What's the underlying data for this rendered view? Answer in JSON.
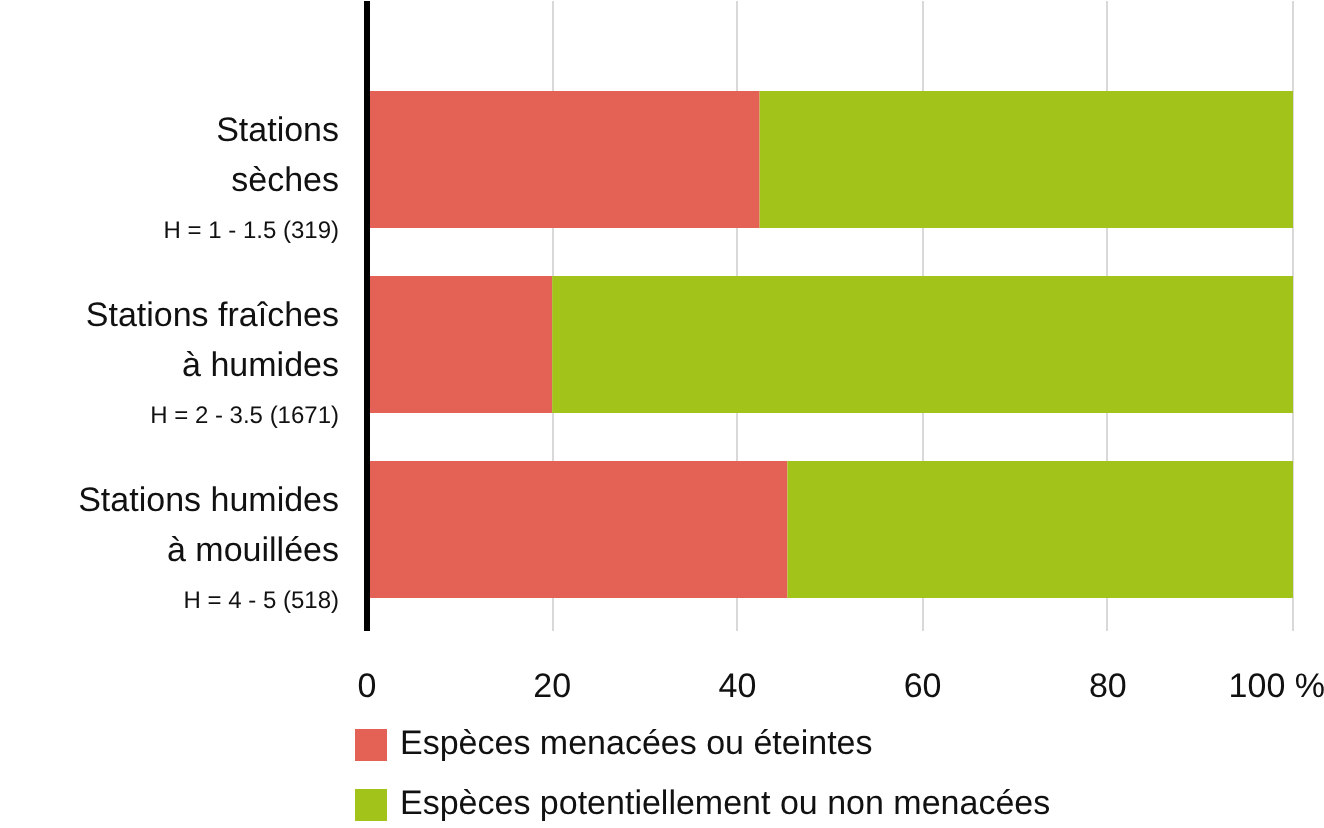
{
  "chart_data": {
    "type": "bar",
    "orientation": "horizontal",
    "stacked": true,
    "categories": [
      "Stations\nsèches\nH = 1 - 1.5 (319)",
      "Stations fraîches\nà humides\nH = 2 - 3.5 (1671)",
      "Stations humides\nà mouillées\nH = 4 - 5 (518)"
    ],
    "series": [
      {
        "name": "Espèces menacées ou éteintes",
        "color": "#e46155",
        "values": [
          42.4,
          20,
          45.4
        ]
      },
      {
        "name": "Espèces potentiellement ou non menacées",
        "color": "#a2c41a",
        "values": [
          57.6,
          80,
          54.6
        ]
      }
    ],
    "xlim": [
      0,
      100
    ],
    "xticks": [
      0,
      20,
      40,
      60,
      80,
      {
        "value": 100,
        "label": "100 %"
      }
    ],
    "grid": "x",
    "legend": "bottom"
  }
}
